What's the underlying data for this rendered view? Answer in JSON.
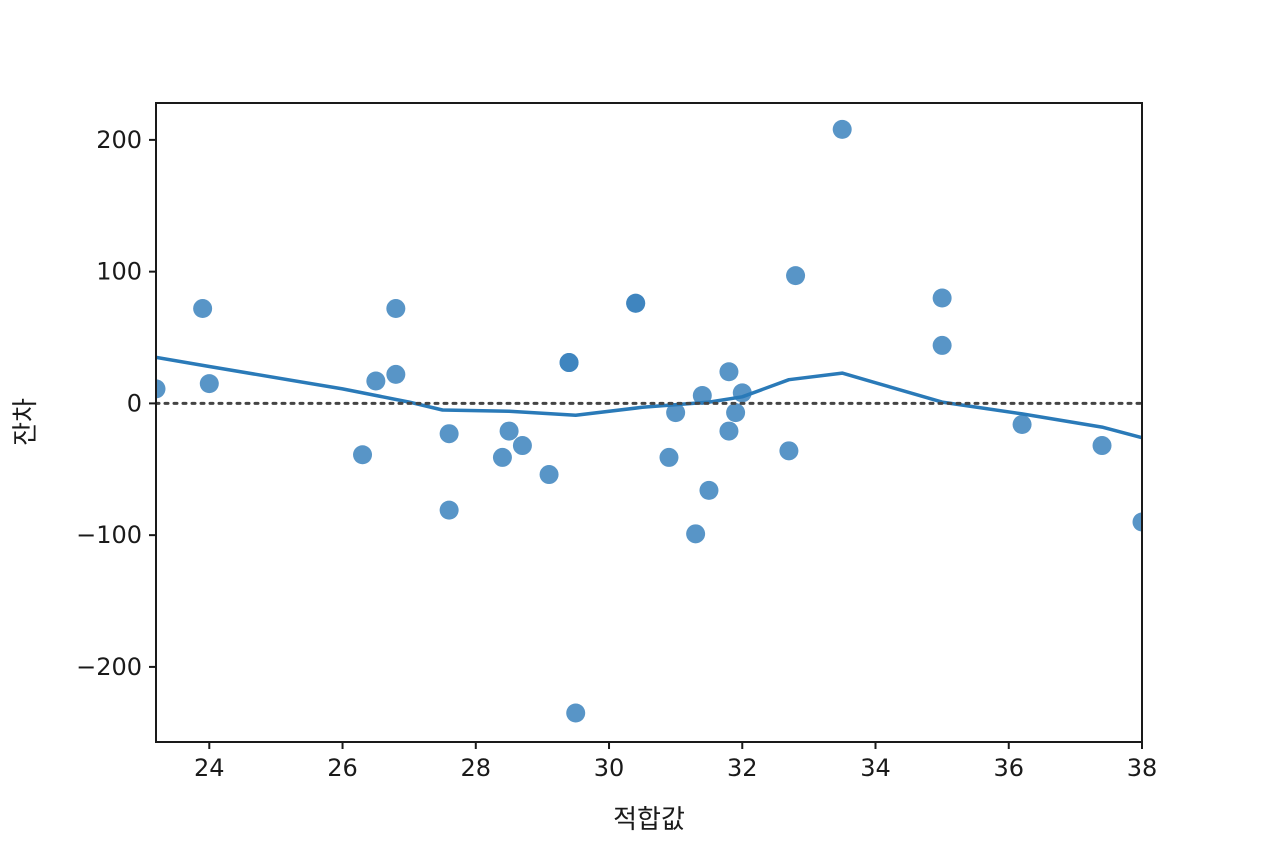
{
  "chart_data": {
    "type": "scatter",
    "title": "",
    "xlabel": "적합값",
    "ylabel": "잔차",
    "xlim": [
      23.2,
      38
    ],
    "ylim": [
      -257,
      228
    ],
    "x_ticks": [
      24,
      26,
      28,
      30,
      32,
      34,
      36,
      38
    ],
    "x_tick_labels": [
      "24",
      "26",
      "28",
      "30",
      "32",
      "34",
      "36",
      "38"
    ],
    "y_ticks": [
      200,
      100,
      0,
      -100,
      -200
    ],
    "y_tick_labels": [
      "200",
      "100",
      "0",
      "−100",
      "−200"
    ],
    "grid": false,
    "colors": {
      "points": "#3b82bd",
      "fit_line": "#2a7ab8",
      "zero_line": "#444444"
    },
    "reference_line": {
      "y": 0,
      "style": "dotted"
    },
    "points": [
      {
        "x": 23.2,
        "y": 11
      },
      {
        "x": 23.9,
        "y": 72
      },
      {
        "x": 24.0,
        "y": 15
      },
      {
        "x": 26.3,
        "y": -39
      },
      {
        "x": 26.5,
        "y": 17
      },
      {
        "x": 26.8,
        "y": 72
      },
      {
        "x": 26.8,
        "y": 22
      },
      {
        "x": 27.6,
        "y": -23
      },
      {
        "x": 27.6,
        "y": -81
      },
      {
        "x": 28.4,
        "y": -41
      },
      {
        "x": 28.5,
        "y": -21
      },
      {
        "x": 28.7,
        "y": -32
      },
      {
        "x": 29.1,
        "y": -54
      },
      {
        "x": 29.4,
        "y": 31
      },
      {
        "x": 29.4,
        "y": 31
      },
      {
        "x": 29.5,
        "y": -235
      },
      {
        "x": 30.4,
        "y": 76
      },
      {
        "x": 30.4,
        "y": 76
      },
      {
        "x": 30.9,
        "y": -41
      },
      {
        "x": 31.0,
        "y": -7
      },
      {
        "x": 31.3,
        "y": -99
      },
      {
        "x": 31.4,
        "y": 6
      },
      {
        "x": 31.5,
        "y": -66
      },
      {
        "x": 31.8,
        "y": 24
      },
      {
        "x": 31.8,
        "y": -21
      },
      {
        "x": 31.9,
        "y": -7
      },
      {
        "x": 32.0,
        "y": 8
      },
      {
        "x": 32.7,
        "y": -36
      },
      {
        "x": 32.8,
        "y": 97
      },
      {
        "x": 33.5,
        "y": 208
      },
      {
        "x": 35.0,
        "y": 80
      },
      {
        "x": 35.0,
        "y": 44
      },
      {
        "x": 36.2,
        "y": -16
      },
      {
        "x": 37.4,
        "y": -32
      },
      {
        "x": 38.0,
        "y": -90
      }
    ],
    "fit_line": [
      {
        "x": 23.2,
        "y": 35
      },
      {
        "x": 24.0,
        "y": 28
      },
      {
        "x": 26.0,
        "y": 11
      },
      {
        "x": 27.0,
        "y": 1
      },
      {
        "x": 27.5,
        "y": -5
      },
      {
        "x": 28.5,
        "y": -6
      },
      {
        "x": 29.5,
        "y": -9
      },
      {
        "x": 30.5,
        "y": -3
      },
      {
        "x": 31.5,
        "y": 1
      },
      {
        "x": 32.0,
        "y": 5
      },
      {
        "x": 32.7,
        "y": 18
      },
      {
        "x": 33.5,
        "y": 23
      },
      {
        "x": 35.0,
        "y": 1
      },
      {
        "x": 36.2,
        "y": -8
      },
      {
        "x": 37.4,
        "y": -18
      },
      {
        "x": 38.0,
        "y": -26
      }
    ]
  }
}
